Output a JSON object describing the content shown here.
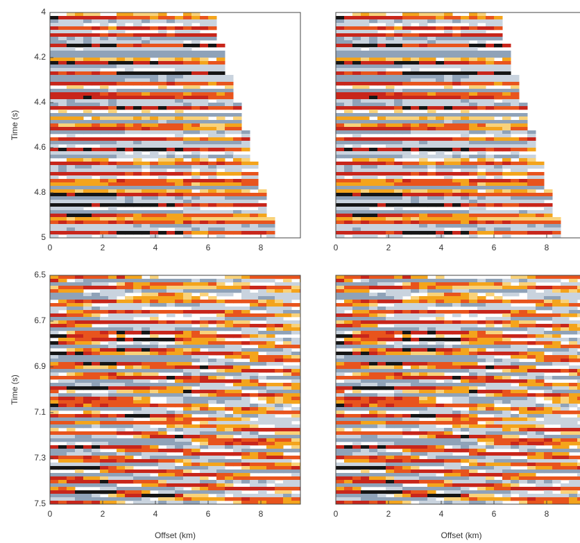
{
  "chart_data": [
    {
      "type": "image",
      "ylabel": "Time (s)",
      "xlim": [
        0,
        9.5
      ],
      "xticks": [
        0,
        2,
        4,
        6,
        8
      ],
      "ylim": [
        4,
        5
      ],
      "yticks": [
        4,
        4.2,
        4.4,
        4.6,
        4.8,
        5
      ]
    },
    {
      "type": "image",
      "xlim": [
        0,
        9.5
      ],
      "xticks": [
        0,
        2,
        4,
        6,
        8
      ],
      "ylim": [
        4,
        5
      ]
    },
    {
      "type": "image",
      "xlabel": "Offset (km)",
      "ylabel": "Time (s)",
      "xlim": [
        0,
        9.5
      ],
      "xticks": [
        0,
        2,
        4,
        6,
        8
      ],
      "ylim": [
        6.5,
        7.5
      ],
      "yticks": [
        6.5,
        6.7,
        6.9,
        7.1,
        7.3,
        7.5
      ]
    },
    {
      "type": "image",
      "xlabel": "Offset (km)",
      "xlim": [
        0,
        9.5
      ],
      "xticks": [
        0,
        2,
        4,
        6,
        8
      ],
      "ylim": [
        6.5,
        7.5
      ]
    }
  ]
}
